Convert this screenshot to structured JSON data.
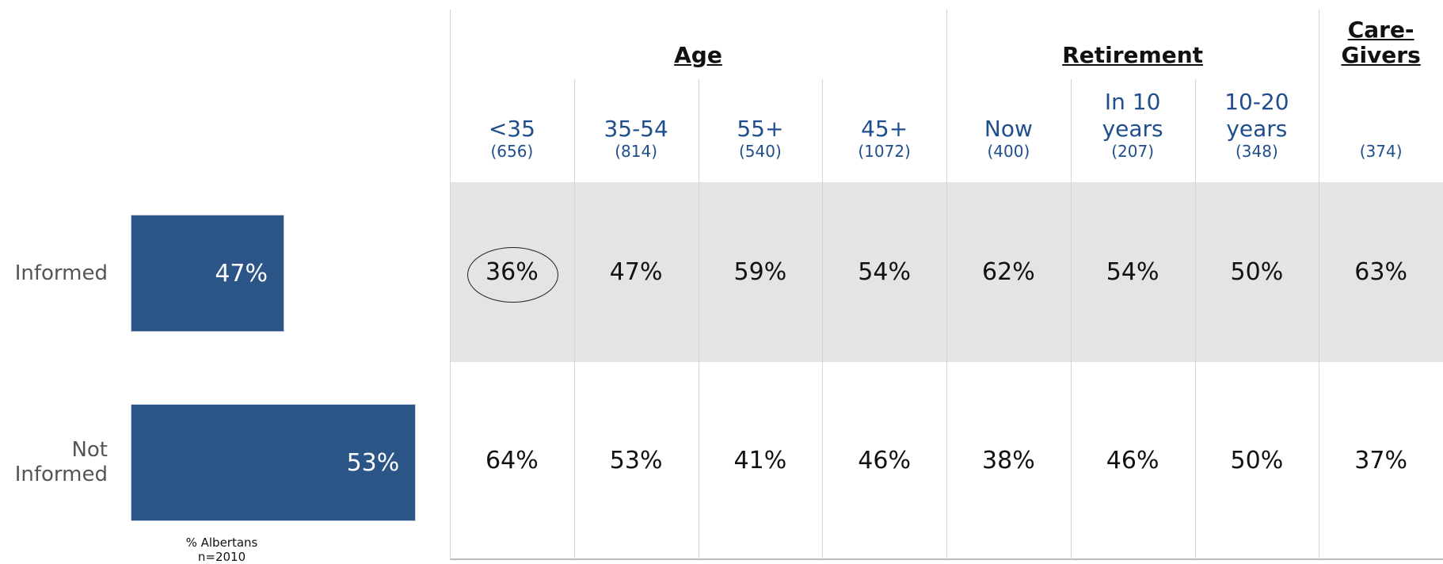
{
  "chart_data": {
    "type": "bar",
    "orientation": "horizontal",
    "categories": [
      "Informed",
      "Not Informed"
    ],
    "values": [
      47,
      53
    ],
    "value_labels": [
      "47%",
      "53%"
    ],
    "color": "#2a5586",
    "xlim": [
      40,
      54
    ],
    "xlabel": "% Albertans",
    "note": "n=2010"
  },
  "table": {
    "groups": [
      {
        "label": "Age",
        "span": 4
      },
      {
        "label": "Retirement",
        "span": 3
      },
      {
        "label": "Care-Givers",
        "span": 1
      }
    ],
    "columns": [
      {
        "label": "<35",
        "n": "(656)"
      },
      {
        "label": "35-54",
        "n": "(814)"
      },
      {
        "label": "55+",
        "n": "(540)"
      },
      {
        "label": "45+",
        "n": "(1072)"
      },
      {
        "label": "Now",
        "n": "(400)"
      },
      {
        "label": "In 10 years",
        "n": "(207)"
      },
      {
        "label": "10-20 years",
        "n": "(348)"
      },
      {
        "n": "(374)"
      }
    ],
    "rows": [
      [
        "36%",
        "47%",
        "59%",
        "54%",
        "62%",
        "54%",
        "50%",
        "63%"
      ],
      [
        "64%",
        "53%",
        "41%",
        "46%",
        "38%",
        "46%",
        "50%",
        "37%"
      ]
    ]
  }
}
